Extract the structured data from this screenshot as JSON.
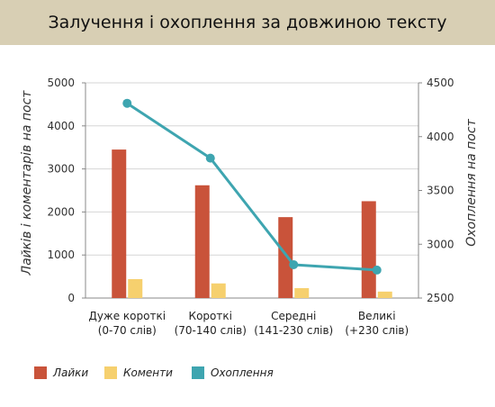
{
  "header": {
    "title": "Залучення і охоплення за довжиною тексту"
  },
  "chart_data": {
    "type": "bar",
    "title": "Залучення і охоплення за довжиною тексту",
    "categories": [
      [
        "Дуже короткі",
        "(0-70 слів)"
      ],
      [
        "Короткі",
        "(70-140 слів)"
      ],
      [
        "Середні",
        "(141-230 слів)"
      ],
      [
        "Великі",
        "(+230 слів)"
      ]
    ],
    "ylabel_left": "Лайків і коментарів на пост",
    "ylabel_right": "Охоплення на пост",
    "ylim_left": [
      0,
      5000
    ],
    "ylim_right": [
      2500,
      4500
    ],
    "yticks_left": [
      0,
      1000,
      2000,
      3000,
      4000,
      5000
    ],
    "yticks_right": [
      2500,
      3000,
      3500,
      4000,
      4500
    ],
    "grid": true,
    "legend_position": "bottom-left",
    "series": [
      {
        "name": "Лайки",
        "type": "bar",
        "axis": "left",
        "color": "#c9533a",
        "values": [
          3450,
          2620,
          1880,
          2250
        ]
      },
      {
        "name": "Коменти",
        "type": "bar",
        "axis": "left",
        "color": "#f6d06e",
        "values": [
          440,
          340,
          230,
          150
        ]
      },
      {
        "name": "Охоплення",
        "type": "line",
        "axis": "right",
        "color": "#3ea5b0",
        "values": [
          4310,
          3800,
          2810,
          2760
        ]
      }
    ]
  }
}
